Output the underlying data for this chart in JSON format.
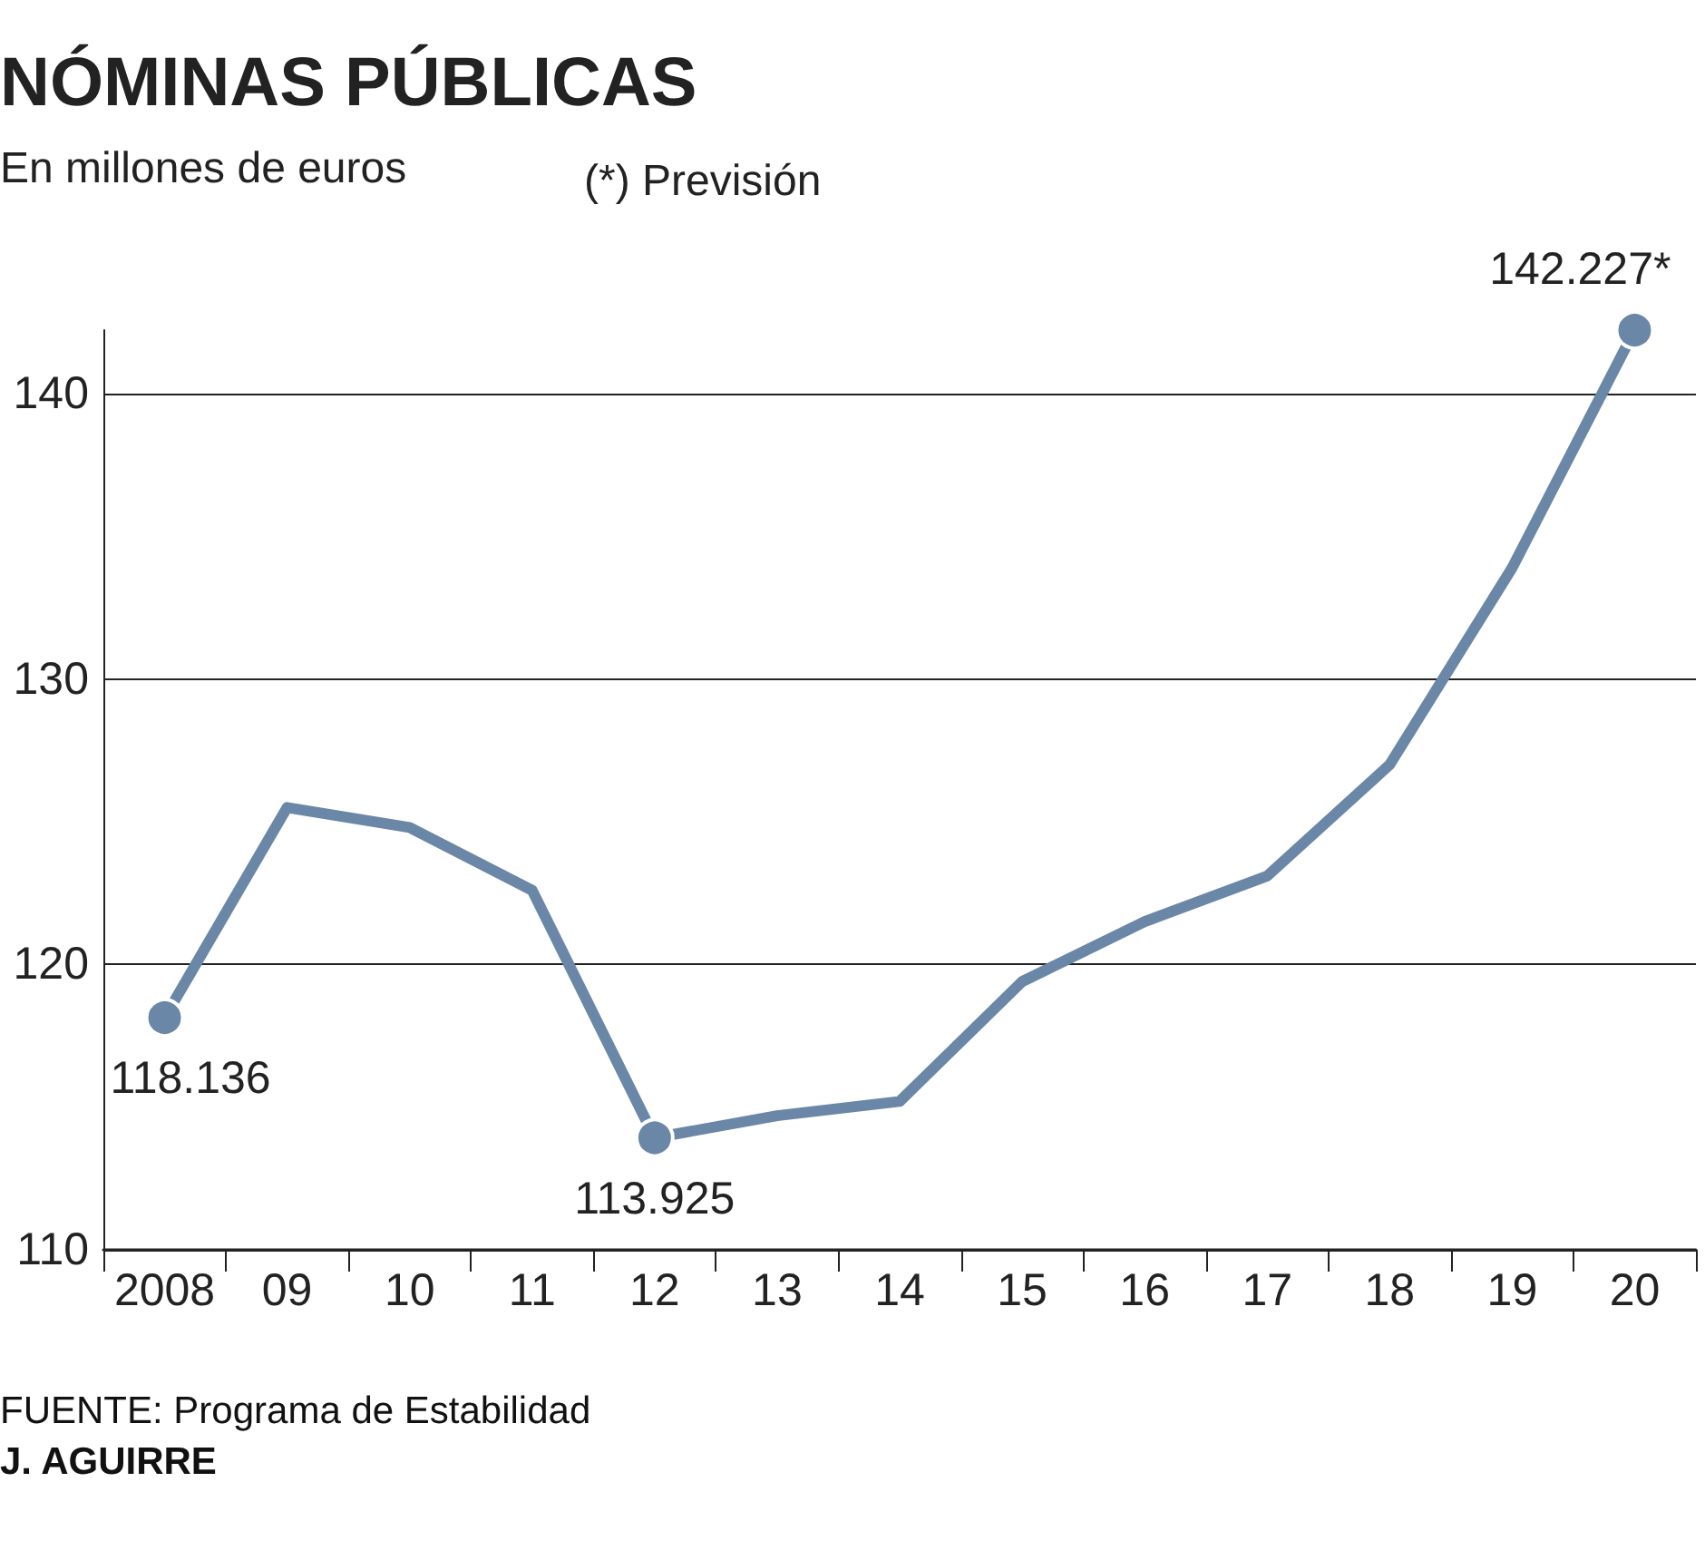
{
  "chart_data": {
    "type": "line",
    "title": "NÓMINAS PÚBLICAS",
    "subtitle": "En millones de euros",
    "categories": [
      "2008",
      "09",
      "10",
      "11",
      "12",
      "13",
      "14",
      "15",
      "16",
      "17",
      "18",
      "19",
      "20"
    ],
    "series": [
      {
        "color": "#6b87a8",
        "values": [
          118.136,
          125.5,
          124.8,
          122.6,
          113.925,
          114.7,
          115.2,
          119.4,
          121.5,
          123.1,
          127.0,
          133.9,
          142.227
        ],
        "value_labels": [
          "118.136",
          null,
          null,
          null,
          "113.925",
          null,
          null,
          null,
          null,
          null,
          null,
          null,
          "142.227*"
        ]
      }
    ],
    "ylim": [
      110,
      142.227
    ],
    "yticks": [
      110,
      120,
      130,
      140
    ],
    "grid": "y",
    "marker": "none",
    "line_style": "solid",
    "annotations": [
      "(*) Previsión",
      "FUENTE: Programa de Estabilidad",
      "J. AGUIRRE"
    ]
  }
}
